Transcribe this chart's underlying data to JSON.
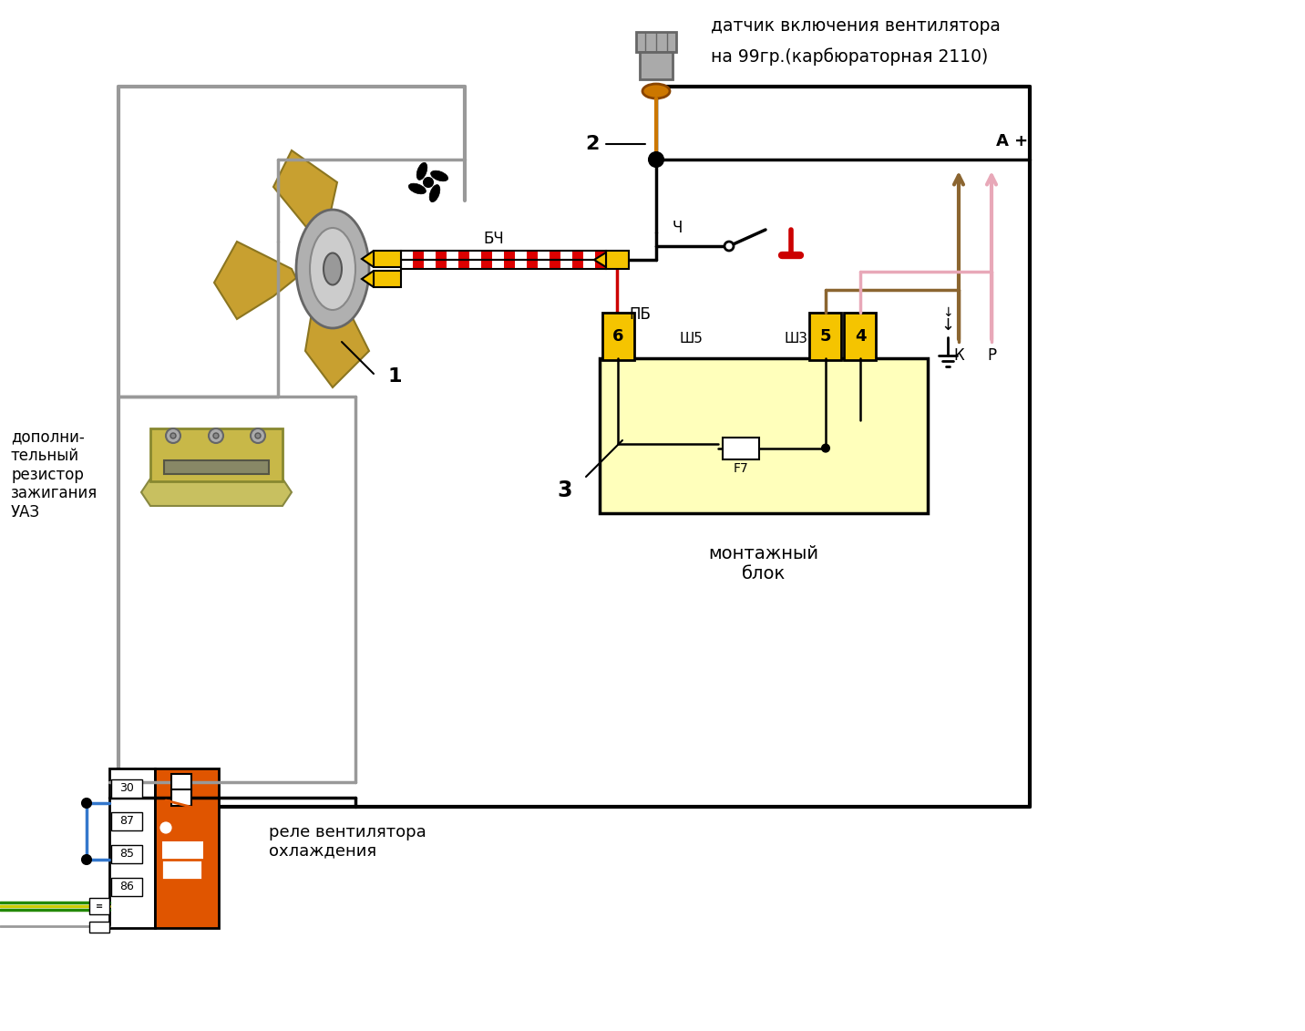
{
  "title1": "датчик включения вентилятора",
  "title2": "на 99гр.(карбюраторная 2110)",
  "lbl_1": "1",
  "lbl_2": "2",
  "lbl_3": "3",
  "lbl_bch": "БЧ",
  "lbl_pb": "ПБ",
  "lbl_ch": "Ч",
  "lbl_sh5": "Ш5",
  "lbl_sh3": "Ш3",
  "lbl_ap": "А +",
  "lbl_k": "К",
  "lbl_p": "Р",
  "lbl_F7": "F7",
  "lbl_montage": "монтажный\nблок",
  "lbl_relay": "реле вентилятора\nохлаждения",
  "lbl_resistor": "дополни-\nтельный\nрезистор\nзажигания\nУАЗ",
  "bg": "#ffffff",
  "col_yellow": "#f5c400",
  "col_lightyellow": "#ffffbb",
  "col_orange": "#e05500",
  "col_red": "#cc0000",
  "col_gray": "#999999",
  "col_darkgray": "#666666",
  "col_brown": "#8B6530",
  "col_pink": "#e8a8b8",
  "col_blue": "#3377cc",
  "col_black": "#000000",
  "col_gold": "#c8a030",
  "col_silver": "#aaaaaa",
  "col_stripe_red": "#dd0000",
  "col_green": "#228800",
  "col_greenyellow": "#cccc00"
}
